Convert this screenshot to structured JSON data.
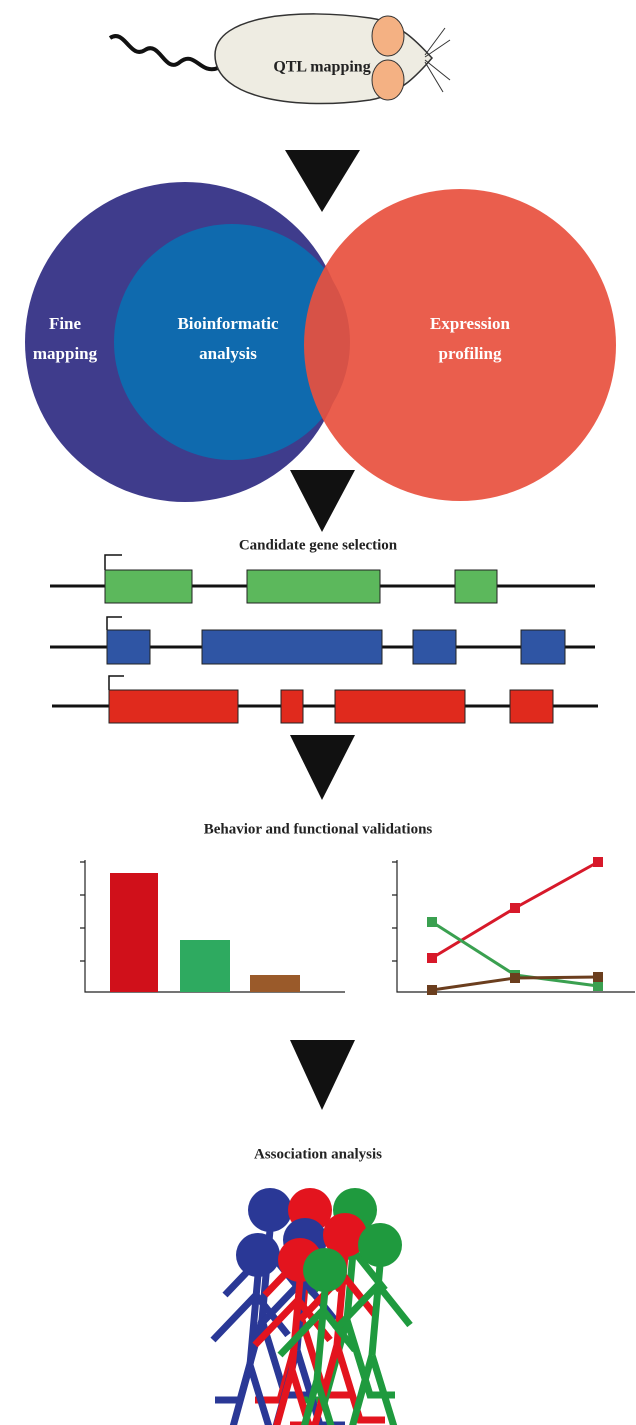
{
  "mouse": {
    "label": "QTL mapping"
  },
  "venn": {
    "left": {
      "lines": [
        "Fine",
        "mapping"
      ]
    },
    "middle": {
      "lines": [
        "Bioinformatic",
        "analysis"
      ]
    },
    "right": {
      "lines": [
        "Expression",
        "profiling"
      ]
    }
  },
  "steps": [
    "Candidate gene selection",
    "Behavior and functional validations",
    "Association analysis"
  ]
}
